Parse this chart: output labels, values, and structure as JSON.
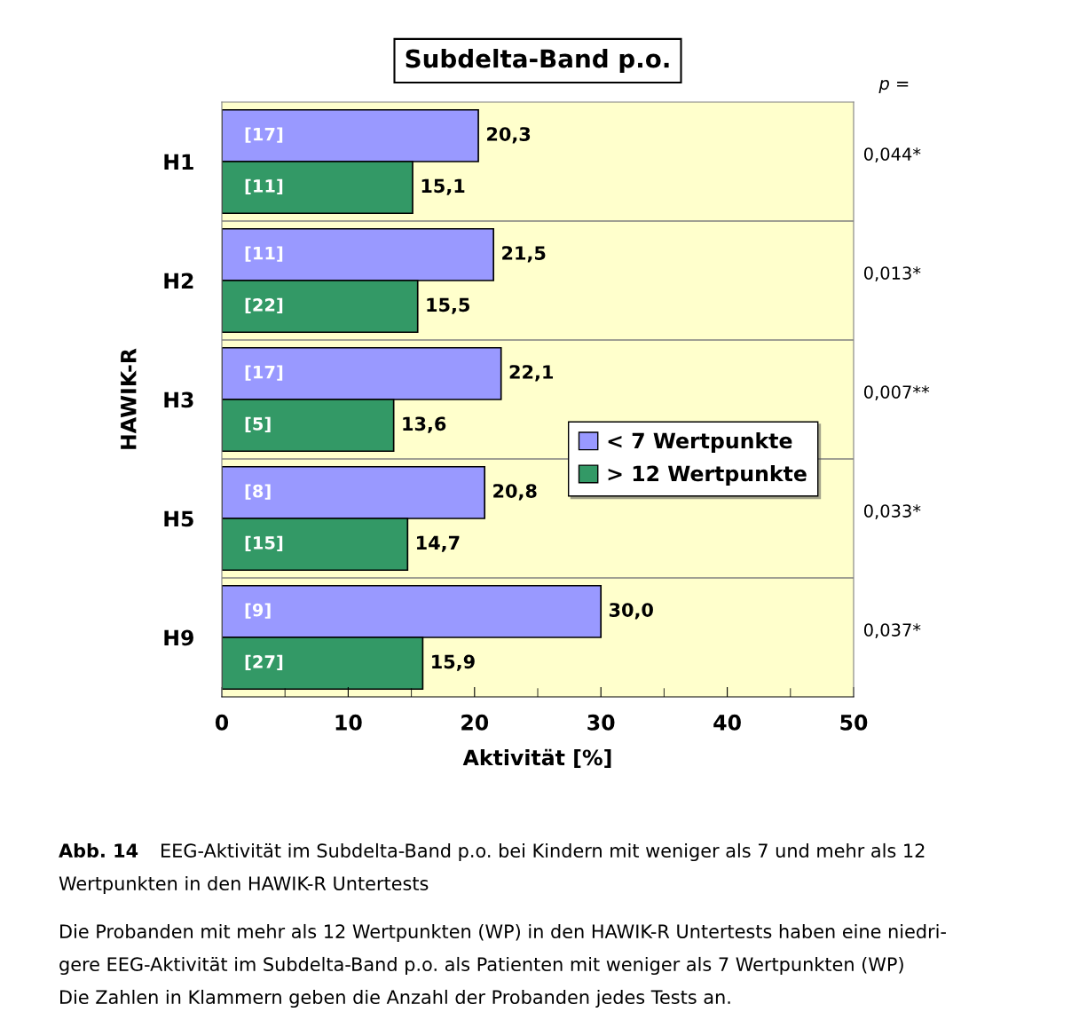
{
  "chart_data": {
    "type": "bar",
    "orientation": "horizontal",
    "title": "Subdelta-Band p.o.",
    "xlabel": "Aktivität [%]",
    "ylabel": "HAWIK-R",
    "categories": [
      "H1",
      "H2",
      "H3",
      "H5",
      "H9"
    ],
    "series": [
      {
        "name": "< 7 Wertpunkte",
        "color": "#9999ff",
        "values": [
          20.3,
          21.5,
          22.1,
          20.8,
          30.0
        ],
        "value_labels": [
          "20,3",
          "21,5",
          "22,1",
          "20,8",
          "30,0"
        ]
      },
      {
        "name": "> 12 Wertpunkte",
        "color": "#339966",
        "values": [
          15.1,
          15.5,
          13.6,
          14.7,
          15.9
        ],
        "value_labels": [
          "15,1",
          "15,5",
          "13,6",
          "14,7",
          "15,9"
        ]
      }
    ],
    "xlim": [
      0,
      50
    ],
    "xticks": [
      0,
      10,
      20,
      30,
      40,
      50
    ],
    "grid": "y",
    "legend": "right",
    "annotations": [
      "[17]",
      "[11]",
      "[11]",
      "[22]",
      "[17]",
      "[5]",
      "[8]",
      "[15]",
      "[9]",
      "[27]",
      "0,044*",
      "0,013*",
      "0,007**",
      "0,033*",
      "0,037*",
      "p =",
      "Abb. 14",
      "EEG-Aktivität im Subdelta-Band p.o. bei Kindern mit weniger als 7 und mehr als 12",
      "Wertpunkten in den HAWIK-R Untertests",
      "Die Probanden mit mehr als 12 Wertpunkten (WP) in den HAWIK-R Untertests haben eine niedri-",
      "gere EEG-Aktivität im Subdelta-Band p.o. als Patienten mit weniger als 7 Wertpunkten (WP)",
      "Die Zahlen in Klammern geben die Anzahl der Probanden jedes Tests an."
    ]
  }
}
